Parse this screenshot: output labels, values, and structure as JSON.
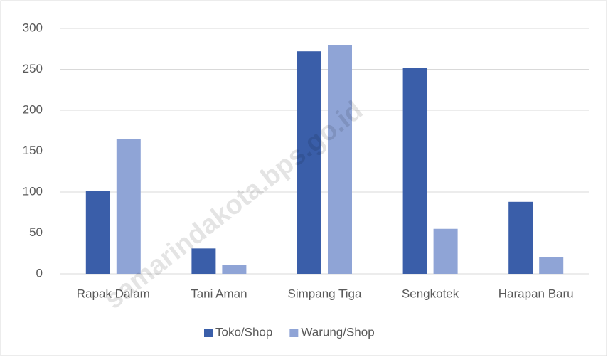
{
  "chart_data": {
    "type": "bar",
    "categories": [
      "Rapak Dalam",
      "Tani Aman",
      "Simpang Tiga",
      "Sengkotek",
      "Harapan Baru"
    ],
    "series": [
      {
        "name": "Toko/Shop",
        "color": "#3a5ea9",
        "values": [
          101,
          31,
          272,
          252,
          88
        ]
      },
      {
        "name": "Warung/Shop",
        "color": "#8fa4d6",
        "values": [
          165,
          11,
          280,
          55,
          20
        ]
      }
    ],
    "ylim": [
      0,
      300
    ],
    "yticks": [
      0,
      50,
      100,
      150,
      200,
      250,
      300
    ],
    "grid": true,
    "legend": "bottom",
    "watermark": "samarindakota.bps.go.id"
  }
}
